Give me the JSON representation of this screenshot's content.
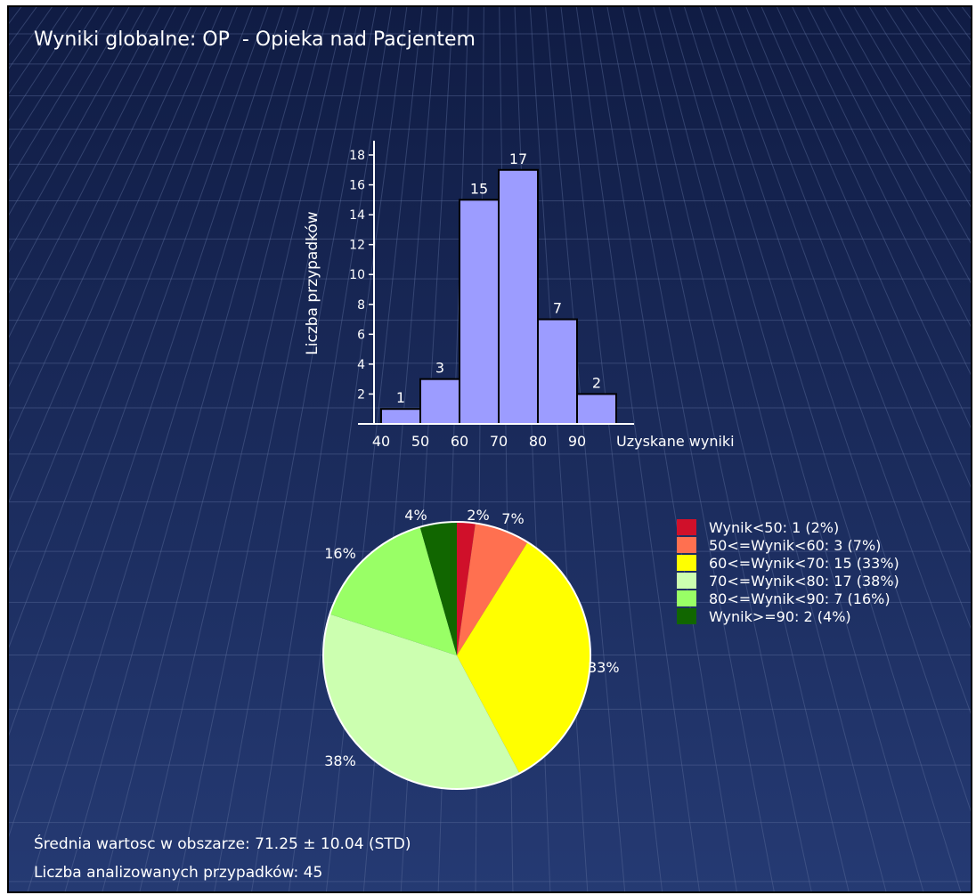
{
  "title": "Wyniki globalne: OP  - Opieka nad Pacjentem",
  "stats": {
    "mean": "Średnia wartosc w obszarze: 71.25 ± 10.04 (STD)",
    "count": "Liczba analizowanych przypadków: 45"
  },
  "colors": {
    "background": "#1a2a56",
    "bar_fill": "#9c9cff"
  },
  "chart_data": [
    {
      "type": "bar",
      "title": "",
      "xlabel": "Uzyskane wyniki",
      "ylabel": "Liczba przypadków",
      "x_ticks": [
        "40",
        "50",
        "60",
        "70",
        "80",
        "90"
      ],
      "bin_edges": [
        40,
        50,
        60,
        70,
        80,
        90,
        100
      ],
      "values": [
        1,
        3,
        15,
        17,
        7,
        2
      ],
      "ylim": [
        0,
        18
      ],
      "y_ticks": [
        2,
        4,
        6,
        8,
        10,
        12,
        14,
        16,
        18
      ],
      "data_labels": [
        "1",
        "3",
        "15",
        "17",
        "7",
        "2"
      ],
      "grid": false
    },
    {
      "type": "pie",
      "title": "",
      "values": [
        1,
        3,
        15,
        17,
        7,
        2
      ],
      "percent_labels": [
        "2%",
        "7%",
        "33%",
        "38%",
        "16%",
        "4%"
      ],
      "legend": [
        "Wynik<50: 1 (2%)",
        "50<=Wynik<60: 3 (7%)",
        "60<=Wynik<70: 15 (33%)",
        "70<=Wynik<80: 17 (38%)",
        "80<=Wynik<90: 7 (16%)",
        "Wynik>=90: 2 (4%)"
      ],
      "colors": [
        "#d0102a",
        "#ff7050",
        "#ffff00",
        "#ccffb0",
        "#99ff66",
        "#116600"
      ],
      "legend_position": "right"
    }
  ]
}
